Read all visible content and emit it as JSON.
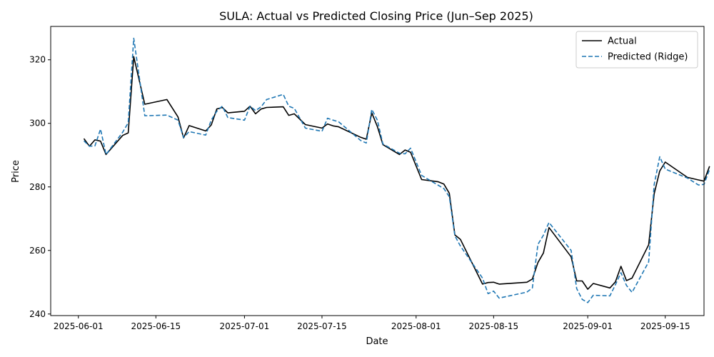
{
  "chart_data": {
    "type": "line",
    "title": "SULA: Actual vs Predicted Closing Price (Jun–Sep 2025)",
    "xlabel": "Date",
    "ylabel": "Price",
    "xlim": [
      "2025-05-27",
      "2025-09-22"
    ],
    "ylim": [
      239.5,
      330.5
    ],
    "x_ticks": [
      "2025-06-01",
      "2025-06-15",
      "2025-07-01",
      "2025-07-15",
      "2025-08-01",
      "2025-08-15",
      "2025-09-01",
      "2025-09-15"
    ],
    "y_ticks": [
      240,
      260,
      280,
      300,
      320
    ],
    "grid": false,
    "legend_position": "top-right",
    "series": [
      {
        "name": "Actual",
        "color": "#000000",
        "style": "solid",
        "points": [
          [
            "2025-06-02",
            295.2
          ],
          [
            "2025-06-03",
            292.8
          ],
          [
            "2025-06-04",
            294.8
          ],
          [
            "2025-06-05",
            294.4
          ],
          [
            "2025-06-06",
            290.2
          ],
          [
            "2025-06-09",
            296.2
          ],
          [
            "2025-06-10",
            297.0
          ],
          [
            "2025-06-11",
            321.0
          ],
          [
            "2025-06-13",
            306.0
          ],
          [
            "2025-06-17",
            307.5
          ],
          [
            "2025-06-19",
            302.0
          ],
          [
            "2025-06-20",
            295.4
          ],
          [
            "2025-06-21",
            299.3
          ],
          [
            "2025-06-24",
            297.6
          ],
          [
            "2025-06-25",
            299.5
          ],
          [
            "2025-06-26",
            304.5
          ],
          [
            "2025-06-27",
            305.0
          ],
          [
            "2025-06-28",
            303.3
          ],
          [
            "2025-07-01",
            303.8
          ],
          [
            "2025-07-02",
            305.4
          ],
          [
            "2025-07-03",
            303.0
          ],
          [
            "2025-07-04",
            304.5
          ],
          [
            "2025-07-05",
            305.0
          ],
          [
            "2025-07-08",
            305.2
          ],
          [
            "2025-07-09",
            302.5
          ],
          [
            "2025-07-10",
            303.0
          ],
          [
            "2025-07-12",
            299.6
          ],
          [
            "2025-07-15",
            298.5
          ],
          [
            "2025-07-16",
            299.8
          ],
          [
            "2025-07-17",
            299.2
          ],
          [
            "2025-07-18",
            298.9
          ],
          [
            "2025-07-22",
            295.6
          ],
          [
            "2025-07-23",
            295.0
          ],
          [
            "2025-07-24",
            303.3
          ],
          [
            "2025-07-25",
            299.0
          ],
          [
            "2025-07-26",
            293.3
          ],
          [
            "2025-07-29",
            290.2
          ],
          [
            "2025-07-30",
            291.6
          ],
          [
            "2025-07-31",
            290.9
          ],
          [
            "2025-08-02",
            282.3
          ],
          [
            "2025-08-05",
            281.6
          ],
          [
            "2025-08-06",
            280.9
          ],
          [
            "2025-08-07",
            278.0
          ],
          [
            "2025-08-08",
            264.9
          ],
          [
            "2025-08-09",
            263.5
          ],
          [
            "2025-08-13",
            249.4
          ],
          [
            "2025-08-14",
            249.9
          ],
          [
            "2025-08-15",
            250.0
          ],
          [
            "2025-08-16",
            249.4
          ],
          [
            "2025-08-21",
            250.0
          ],
          [
            "2025-08-22",
            251.0
          ],
          [
            "2025-08-23",
            256.2
          ],
          [
            "2025-08-24",
            259.2
          ],
          [
            "2025-08-25",
            267.2
          ],
          [
            "2025-08-29",
            258.0
          ],
          [
            "2025-08-30",
            250.4
          ],
          [
            "2025-08-31",
            250.4
          ],
          [
            "2025-09-01",
            247.8
          ],
          [
            "2025-09-02",
            249.6
          ],
          [
            "2025-09-05",
            248.2
          ],
          [
            "2025-09-06",
            250.1
          ],
          [
            "2025-09-07",
            255.0
          ],
          [
            "2025-09-08",
            250.5
          ],
          [
            "2025-09-09",
            251.3
          ],
          [
            "2025-09-12",
            261.8
          ],
          [
            "2025-09-13",
            277.8
          ],
          [
            "2025-09-14",
            285.0
          ],
          [
            "2025-09-15",
            287.8
          ],
          [
            "2025-09-19",
            283.0
          ],
          [
            "2025-09-21",
            282.2
          ],
          [
            "2025-09-22",
            281.8
          ],
          [
            "2025-09-23",
            286.5
          ]
        ]
      },
      {
        "name": "Predicted (Ridge)",
        "color": "#1f77b4",
        "style": "dashed",
        "points": [
          [
            "2025-06-02",
            294.5
          ],
          [
            "2025-06-03",
            292.8
          ],
          [
            "2025-06-04",
            292.9
          ],
          [
            "2025-06-05",
            298.2
          ],
          [
            "2025-06-06",
            290.2
          ],
          [
            "2025-06-09",
            297.2
          ],
          [
            "2025-06-10",
            300.2
          ],
          [
            "2025-06-11",
            326.8
          ],
          [
            "2025-06-13",
            302.4
          ],
          [
            "2025-06-17",
            302.6
          ],
          [
            "2025-06-19",
            301.0
          ],
          [
            "2025-06-20",
            295.5
          ],
          [
            "2025-06-21",
            297.4
          ],
          [
            "2025-06-24",
            296.3
          ],
          [
            "2025-06-25",
            301.0
          ],
          [
            "2025-06-26",
            303.8
          ],
          [
            "2025-06-27",
            305.4
          ],
          [
            "2025-06-28",
            301.8
          ],
          [
            "2025-07-01",
            301.0
          ],
          [
            "2025-07-02",
            305.4
          ],
          [
            "2025-07-03",
            304.0
          ],
          [
            "2025-07-04",
            305.2
          ],
          [
            "2025-07-05",
            307.5
          ],
          [
            "2025-07-08",
            309.1
          ],
          [
            "2025-07-09",
            305.4
          ],
          [
            "2025-07-10",
            304.7
          ],
          [
            "2025-07-12",
            298.5
          ],
          [
            "2025-07-15",
            297.5
          ],
          [
            "2025-07-16",
            301.6
          ],
          [
            "2025-07-17",
            301.0
          ],
          [
            "2025-07-18",
            300.5
          ],
          [
            "2025-07-22",
            294.6
          ],
          [
            "2025-07-23",
            293.8
          ],
          [
            "2025-07-24",
            304.4
          ],
          [
            "2025-07-25",
            301.0
          ],
          [
            "2025-07-26",
            293.5
          ],
          [
            "2025-07-29",
            290.6
          ],
          [
            "2025-07-30",
            290.4
          ],
          [
            "2025-07-31",
            292.2
          ],
          [
            "2025-08-02",
            283.6
          ],
          [
            "2025-08-05",
            280.5
          ],
          [
            "2025-08-06",
            279.5
          ],
          [
            "2025-08-07",
            276.9
          ],
          [
            "2025-08-08",
            264.6
          ],
          [
            "2025-08-09",
            261.4
          ],
          [
            "2025-08-13",
            251.3
          ],
          [
            "2025-08-14",
            246.4
          ],
          [
            "2025-08-15",
            247.2
          ],
          [
            "2025-08-16",
            245.0
          ],
          [
            "2025-08-21",
            246.9
          ],
          [
            "2025-08-22",
            248.2
          ],
          [
            "2025-08-23",
            261.9
          ],
          [
            "2025-08-24",
            264.8
          ],
          [
            "2025-08-25",
            268.8
          ],
          [
            "2025-08-29",
            260.0
          ],
          [
            "2025-08-30",
            248.0
          ],
          [
            "2025-08-31",
            244.6
          ],
          [
            "2025-09-01",
            243.6
          ],
          [
            "2025-09-02",
            245.9
          ],
          [
            "2025-09-05",
            245.7
          ],
          [
            "2025-09-06",
            249.2
          ],
          [
            "2025-09-07",
            253.0
          ],
          [
            "2025-09-08",
            249.0
          ],
          [
            "2025-09-09",
            246.8
          ],
          [
            "2025-09-12",
            256.4
          ],
          [
            "2025-09-13",
            280.7
          ],
          [
            "2025-09-14",
            289.5
          ],
          [
            "2025-09-15",
            285.6
          ],
          [
            "2025-09-19",
            282.8
          ],
          [
            "2025-09-21",
            280.6
          ],
          [
            "2025-09-22",
            280.8
          ],
          [
            "2025-09-23",
            285.5
          ]
        ]
      }
    ]
  }
}
